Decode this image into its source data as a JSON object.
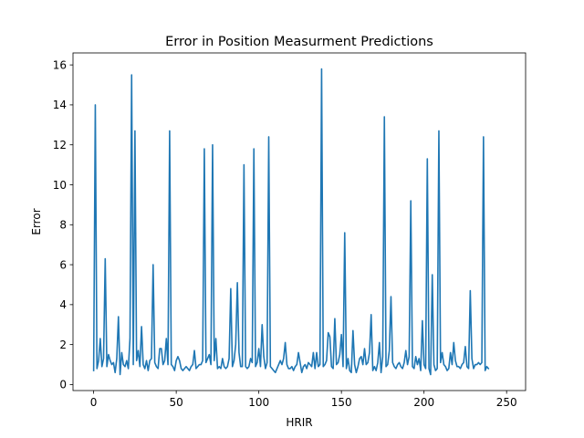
{
  "chart_data": {
    "type": "line",
    "title": "Error in Position Measurment Predictions",
    "xlabel": "HRIR",
    "ylabel": "Error",
    "xlim": [
      -12.5,
      261.5
    ],
    "ylim": [
      -0.3,
      16.6
    ],
    "xticks": [
      0,
      50,
      100,
      150,
      200,
      250
    ],
    "yticks": [
      0,
      2,
      4,
      6,
      8,
      10,
      12,
      14,
      16
    ],
    "grid": false,
    "series": [
      {
        "color": "#1f77b4",
        "values": [
          0.7,
          14.0,
          0.8,
          1.2,
          2.3,
          0.9,
          1.3,
          6.3,
          0.9,
          1.5,
          1.2,
          1.0,
          1.1,
          0.6,
          1.3,
          3.4,
          0.5,
          1.6,
          1.0,
          0.9,
          1.2,
          0.8,
          2.3,
          15.5,
          1.0,
          12.7,
          1.2,
          1.7,
          0.9,
          2.9,
          1.0,
          0.8,
          1.2,
          0.7,
          1.2,
          1.3,
          6.0,
          1.1,
          0.9,
          0.8,
          1.8,
          1.8,
          1.0,
          1.2,
          2.3,
          1.0,
          12.7,
          1.0,
          0.9,
          0.7,
          1.2,
          1.4,
          1.2,
          0.8,
          0.7,
          0.8,
          0.9,
          0.8,
          0.7,
          0.9,
          1.0,
          1.7,
          0.8,
          0.9,
          1.0,
          1.0,
          1.2,
          11.8,
          1.1,
          1.3,
          1.5,
          1.0,
          12.0,
          1.2,
          2.3,
          0.8,
          0.9,
          0.8,
          1.3,
          0.9,
          0.8,
          0.9,
          1.3,
          4.8,
          0.9,
          1.2,
          2.0,
          5.1,
          1.6,
          0.9,
          0.9,
          11.0,
          0.9,
          0.8,
          0.9,
          1.3,
          1.1,
          11.8,
          0.9,
          1.1,
          1.8,
          0.9,
          3.0,
          1.4,
          0.8,
          1.1,
          12.4,
          0.9,
          0.8,
          0.7,
          0.6,
          0.8,
          1.0,
          1.2,
          1.0,
          1.3,
          2.1,
          1.0,
          0.8,
          0.8,
          0.9,
          0.7,
          0.9,
          1.0,
          1.6,
          1.1,
          0.6,
          0.9,
          1.0,
          0.8,
          1.1,
          1.0,
          0.9,
          1.6,
          0.8,
          1.6,
          0.9,
          1.0,
          15.8,
          0.9,
          1.0,
          1.2,
          2.6,
          2.4,
          0.9,
          0.8,
          3.3,
          1.0,
          1.1,
          1.5,
          2.5,
          0.9,
          7.6,
          0.8,
          1.3,
          0.7,
          0.6,
          2.7,
          1.0,
          0.6,
          0.9,
          1.3,
          1.4,
          1.0,
          1.8,
          1.0,
          1.1,
          1.6,
          3.5,
          0.7,
          0.9,
          0.7,
          1.1,
          2.1,
          0.6,
          1.4,
          13.4,
          0.9,
          1.0,
          1.7,
          4.4,
          1.1,
          0.9,
          0.8,
          1.0,
          1.1,
          0.9,
          0.8,
          1.1,
          1.7,
          1.0,
          1.4,
          9.2,
          0.9,
          0.8,
          1.4,
          1.0,
          1.3,
          0.7,
          3.2,
          1.0,
          0.8,
          11.3,
          0.8,
          0.5,
          5.5,
          1.0,
          0.7,
          0.8,
          12.7,
          1.1,
          1.6,
          1.0,
          0.9,
          0.7,
          0.8,
          1.6,
          1.0,
          2.1,
          1.2,
          0.9,
          0.9,
          0.8,
          1.0,
          1.1,
          1.9,
          0.9,
          0.8,
          4.7,
          1.3,
          0.8,
          1.0,
          1.0,
          1.1,
          1.0,
          1.1,
          12.4,
          0.7,
          0.9,
          0.8
        ]
      }
    ]
  }
}
